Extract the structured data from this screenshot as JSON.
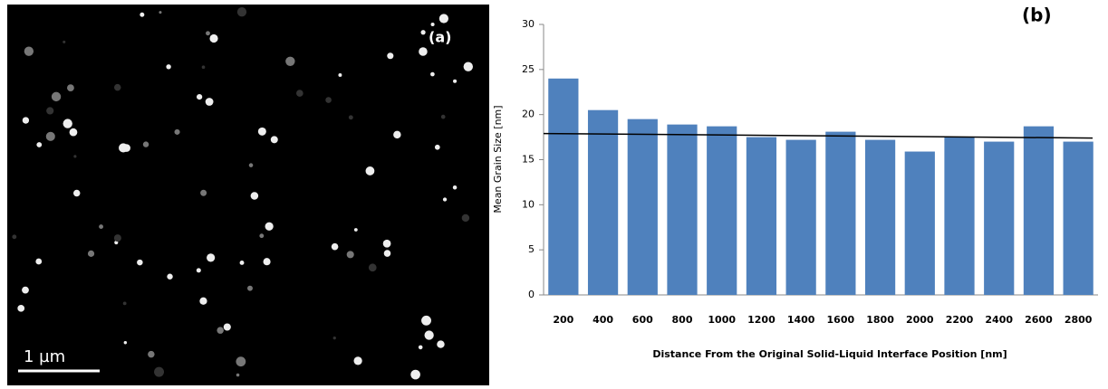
{
  "micrograph": {
    "label": "(a)",
    "scale_bar": "1 µm"
  },
  "chart_data": {
    "type": "bar",
    "panel_label": "(b)",
    "y_label": "Mean Grain Size [nm]",
    "x_label": "Distance From the Original  Solid-Liquid Interface Position [nm]",
    "categories": [
      "200",
      "400",
      "600",
      "800",
      "1000",
      "1200",
      "1400",
      "1600",
      "1800",
      "2000",
      "2200",
      "2400",
      "2600",
      "2800"
    ],
    "values": [
      24,
      20.5,
      19.5,
      18.9,
      18.7,
      17.5,
      17.2,
      18.1,
      17.2,
      15.9,
      17.5,
      17,
      18.7,
      17
    ],
    "color": "#4f81bd",
    "trend_line": [
      17.9,
      17.4
    ],
    "ylim": [
      0,
      30
    ],
    "yticks": [
      0,
      5,
      10,
      15,
      20,
      25,
      30
    ],
    "grid": false
  }
}
